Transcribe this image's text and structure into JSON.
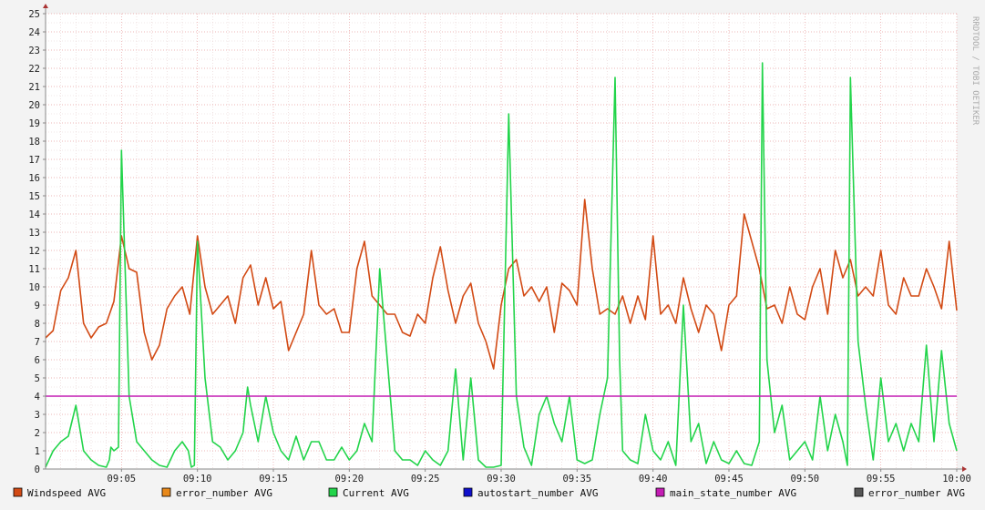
{
  "watermark": "RRDTOOL / TOBI OETIKER",
  "chart_data": {
    "type": "line",
    "xlabel": "",
    "ylabel": "",
    "ylim": [
      0,
      25
    ],
    "xlim": [
      0,
      60
    ],
    "x_unit": "minutes after 09:00",
    "y_ticks": [
      "0",
      "1",
      "2",
      "3",
      "4",
      "5",
      "6",
      "7",
      "8",
      "9",
      "10",
      "11",
      "12",
      "13",
      "14",
      "15",
      "16",
      "17",
      "18",
      "19",
      "20",
      "21",
      "22",
      "23",
      "24",
      "25"
    ],
    "x_ticks": [
      {
        "x": 5,
        "label": "09:05"
      },
      {
        "x": 10,
        "label": "09:10"
      },
      {
        "x": 15,
        "label": "09:15"
      },
      {
        "x": 20,
        "label": "09:20"
      },
      {
        "x": 25,
        "label": "09:25"
      },
      {
        "x": 30,
        "label": "09:30"
      },
      {
        "x": 35,
        "label": "09:35"
      },
      {
        "x": 40,
        "label": "09:40"
      },
      {
        "x": 45,
        "label": "09:45"
      },
      {
        "x": 50,
        "label": "09:50"
      },
      {
        "x": 55,
        "label": "09:55"
      },
      {
        "x": 60,
        "label": "10:00"
      }
    ],
    "grid": true,
    "legend": [
      {
        "name": "Windspeed AVG",
        "color": "#d24a14"
      },
      {
        "name": "error_number AVG",
        "color": "#e8891b"
      },
      {
        "name": "Current AVG",
        "color": "#22d44a"
      },
      {
        "name": "autostart_number AVG",
        "color": "#1010cc"
      },
      {
        "name": "main_state_number AVG",
        "color": "#c41db4"
      },
      {
        "name": "error_number AVG",
        "color": "#555555"
      }
    ],
    "series": [
      {
        "name": "Windspeed AVG",
        "color": "#d24a14",
        "x": [
          0,
          0.5,
          1,
          1.5,
          2,
          2.5,
          3,
          3.5,
          4,
          4.5,
          5,
          5.5,
          6,
          6.5,
          7,
          7.5,
          8,
          8.5,
          9,
          9.5,
          10,
          10.5,
          11,
          11.5,
          12,
          12.5,
          13,
          13.5,
          14,
          14.5,
          15,
          15.5,
          16,
          16.5,
          17,
          17.5,
          18,
          18.5,
          19,
          19.5,
          20,
          20.5,
          21,
          21.5,
          22,
          22.5,
          23,
          23.5,
          24,
          24.5,
          25,
          25.5,
          26,
          26.5,
          27,
          27.5,
          28,
          28.5,
          29,
          29.5,
          30,
          30.5,
          31,
          31.5,
          32,
          32.5,
          33,
          33.5,
          34,
          34.5,
          35,
          35.5,
          36,
          36.5,
          37,
          37.5,
          38,
          38.5,
          39,
          39.5,
          40,
          40.5,
          41,
          41.5,
          42,
          42.5,
          43,
          43.5,
          44,
          44.5,
          45,
          45.5,
          46,
          46.5,
          47,
          47.5,
          48,
          48.5,
          49,
          49.5,
          50,
          50.5,
          51,
          51.5,
          52,
          52.5,
          53,
          53.5,
          54,
          54.5,
          55,
          55.5,
          56,
          56.5,
          57,
          57.5,
          58,
          58.5,
          59,
          59.5,
          60
        ],
        "values": [
          7.2,
          7.6,
          9.8,
          10.5,
          12.0,
          8.0,
          7.2,
          7.8,
          8.0,
          9.2,
          12.8,
          11.0,
          10.8,
          7.5,
          6.0,
          6.8,
          8.8,
          9.5,
          10.0,
          8.5,
          12.8,
          10.0,
          8.5,
          9.0,
          9.5,
          8.0,
          10.5,
          11.2,
          9.0,
          10.5,
          8.8,
          9.2,
          6.5,
          7.5,
          8.5,
          12.0,
          9.0,
          8.5,
          8.8,
          7.5,
          7.5,
          11.0,
          12.5,
          9.5,
          9.0,
          8.5,
          8.5,
          7.5,
          7.3,
          8.5,
          8.0,
          10.5,
          12.2,
          9.8,
          8.0,
          9.5,
          10.2,
          8.0,
          7.0,
          5.5,
          9.0,
          11.0,
          11.5,
          9.5,
          10.0,
          9.2,
          10.0,
          7.5,
          10.2,
          9.8,
          9.0,
          14.8,
          11.0,
          8.5,
          8.8,
          8.5,
          9.5,
          8.0,
          9.5,
          8.2,
          12.8,
          8.5,
          9.0,
          8.0,
          10.5,
          8.8,
          7.5,
          9.0,
          8.5,
          6.5,
          9.0,
          9.5,
          14.0,
          12.5,
          11.0,
          8.8,
          9.0,
          8.0,
          10.0,
          8.5,
          8.2,
          10.0,
          11.0,
          8.5,
          12.0,
          10.5,
          11.5,
          9.5,
          10.0,
          9.5,
          12.0,
          9.0,
          8.5,
          10.5,
          9.5,
          9.5,
          11.0,
          10.0,
          8.8,
          12.5,
          8.7
        ]
      },
      {
        "name": "Current AVG",
        "color": "#22d44a",
        "x": [
          0,
          0.5,
          1,
          1.5,
          2,
          2.5,
          3,
          3.5,
          4,
          4.2,
          4.3,
          4.5,
          4.8,
          5,
          5.5,
          6,
          6.5,
          7,
          7.5,
          8,
          8.5,
          9,
          9.4,
          9.6,
          9.8,
          10,
          10.5,
          11,
          11.5,
          12,
          12.5,
          13,
          13.3,
          13.5,
          14,
          14.5,
          15,
          15.5,
          16,
          16.5,
          17,
          17.5,
          18,
          18.5,
          19,
          19.5,
          20,
          20.5,
          21,
          21.5,
          22,
          22.5,
          23,
          23.5,
          24,
          24.5,
          25,
          25.5,
          26,
          26.5,
          27,
          27.5,
          28,
          28.5,
          29,
          29.5,
          30,
          30.5,
          31,
          31.5,
          32,
          32.5,
          33,
          33.5,
          34,
          34.5,
          35,
          35.5,
          36,
          36.5,
          37,
          37.5,
          37.8,
          38,
          38.5,
          39,
          39.5,
          40,
          40.5,
          41,
          41.5,
          42,
          42.5,
          43,
          43.5,
          44,
          44.5,
          45,
          45.5,
          46,
          46.5,
          47,
          47.2,
          47.5,
          48,
          48.5,
          49,
          49.5,
          50,
          50.5,
          51,
          51.5,
          52,
          52.5,
          52.8,
          53,
          53.5,
          54,
          54.5,
          55,
          55.5,
          56,
          56.5,
          57,
          57.5,
          58,
          58.5,
          59,
          59.5,
          60
        ],
        "values": [
          0.1,
          1.0,
          1.5,
          1.8,
          3.5,
          1.0,
          0.5,
          0.2,
          0.1,
          0.5,
          1.2,
          1.0,
          1.2,
          17.5,
          4.0,
          1.5,
          1.0,
          0.5,
          0.2,
          0.1,
          1.0,
          1.5,
          1.0,
          0.1,
          0.2,
          12.5,
          5.0,
          1.5,
          1.2,
          0.5,
          1.0,
          2.0,
          4.5,
          3.5,
          1.5,
          4.0,
          2.0,
          1.0,
          0.5,
          1.8,
          0.5,
          1.5,
          1.5,
          0.5,
          0.5,
          1.2,
          0.5,
          1.0,
          2.5,
          1.5,
          11.0,
          6.0,
          1.0,
          0.5,
          0.5,
          0.2,
          1.0,
          0.5,
          0.2,
          1.0,
          5.5,
          0.5,
          5.0,
          0.5,
          0.1,
          0.1,
          0.2,
          19.5,
          4.0,
          1.2,
          0.2,
          3.0,
          4.0,
          2.5,
          1.5,
          4.0,
          0.5,
          0.3,
          0.5,
          3.0,
          5.0,
          21.5,
          6.0,
          1.0,
          0.5,
          0.3,
          3.0,
          1.0,
          0.5,
          1.5,
          0.2,
          9.0,
          1.5,
          2.5,
          0.3,
          1.5,
          0.5,
          0.3,
          1.0,
          0.3,
          0.2,
          1.5,
          22.3,
          6.0,
          2.0,
          3.5,
          0.5,
          1.0,
          1.5,
          0.5,
          4.0,
          1.0,
          3.0,
          1.5,
          0.2,
          21.5,
          7.0,
          3.5,
          0.5,
          5.0,
          1.5,
          2.5,
          1.0,
          2.5,
          1.5,
          6.8,
          1.5,
          6.5,
          2.5,
          1.0
        ]
      },
      {
        "name": "main_state_number AVG",
        "color": "#c41db4",
        "x": [
          0,
          60
        ],
        "values": [
          4,
          4
        ]
      }
    ]
  }
}
